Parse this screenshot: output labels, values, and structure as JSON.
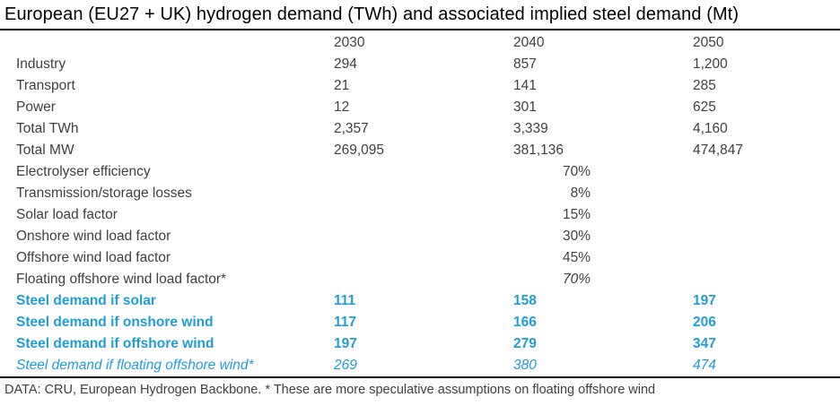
{
  "title": "European (EU27 + UK) hydrogen demand (TWh) and associated implied steel demand (Mt)",
  "footer": "DATA: CRU, European Hydrogen Backbone. * These are more speculative assumptions on floating offshore wind",
  "colors": {
    "accent_blue": "#1F9ED6",
    "body_text": "#404040",
    "title_text": "#000000",
    "rule": "#000000"
  },
  "chart_data": {
    "type": "table",
    "title": "European (EU27 + UK) hydrogen demand (TWh) and associated implied steel demand (Mt)",
    "columns": [
      "",
      "2030",
      "2040",
      "2050"
    ],
    "rows": [
      {
        "label": "Industry",
        "values": [
          "294",
          "857",
          "1,200"
        ],
        "style": "normal"
      },
      {
        "label": "Transport",
        "values": [
          "21",
          "141",
          "285"
        ],
        "style": "normal"
      },
      {
        "label": "Power",
        "values": [
          "12",
          "301",
          "625"
        ],
        "style": "normal"
      },
      {
        "label": "Total TWh",
        "values": [
          "2,357",
          "3,339",
          "4,160"
        ],
        "style": "normal"
      },
      {
        "label": "Total MW",
        "values": [
          "269,095",
          "381,136",
          "474,847"
        ],
        "style": "normal"
      },
      {
        "label": "Electrolyser efficiency",
        "values": [
          "",
          "70%",
          ""
        ],
        "style": "assumption"
      },
      {
        "label": "Transmission/storage losses",
        "values": [
          "",
          "8%",
          ""
        ],
        "style": "assumption"
      },
      {
        "label": "Solar load factor",
        "values": [
          "",
          "15%",
          ""
        ],
        "style": "assumption"
      },
      {
        "label": "Onshore wind load factor",
        "values": [
          "",
          "30%",
          ""
        ],
        "style": "assumption"
      },
      {
        "label": "Offshore wind load factor",
        "values": [
          "",
          "45%",
          ""
        ],
        "style": "assumption"
      },
      {
        "label": "Floating offshore wind load factor*",
        "values": [
          "",
          "70%",
          ""
        ],
        "style": "assumption-italic"
      },
      {
        "label": "Steel demand if solar",
        "values": [
          "111",
          "158",
          "197"
        ],
        "style": "steel-bold"
      },
      {
        "label": "Steel demand if onshore wind",
        "values": [
          "117",
          "166",
          "206"
        ],
        "style": "steel-bold"
      },
      {
        "label": "Steel demand if offshore wind",
        "values": [
          "197",
          "279",
          "347"
        ],
        "style": "steel-bold"
      },
      {
        "label": "Steel demand if floating offshore wind*",
        "values": [
          "269",
          "380",
          "474"
        ],
        "style": "steel-italic"
      }
    ]
  }
}
